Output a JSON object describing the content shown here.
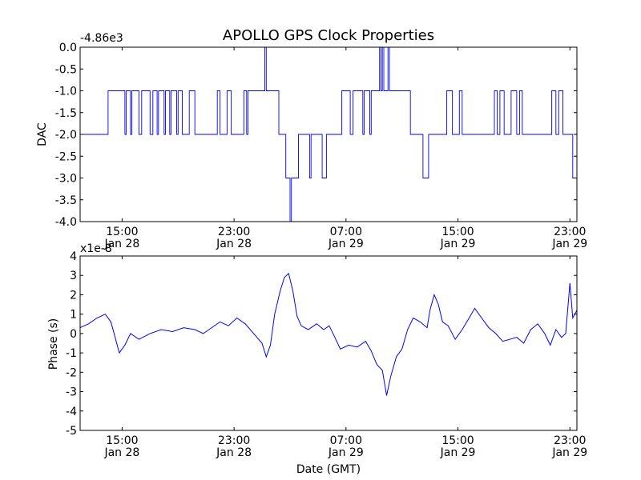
{
  "figure": {
    "title": "APOLLO GPS Clock Properties",
    "xlabel": "Date (GMT)"
  },
  "x_ticks": [
    {
      "time": "15:00",
      "day": "Jan 28"
    },
    {
      "time": "23:00",
      "day": "Jan 28"
    },
    {
      "time": "07:00",
      "day": "Jan 29"
    },
    {
      "time": "15:00",
      "day": "Jan 29"
    },
    {
      "time": "23:00",
      "day": "Jan 29"
    }
  ],
  "colors": {
    "line": "#0000ff",
    "axes": "#000000",
    "background": "#ffffff"
  },
  "chart_data": [
    {
      "type": "line",
      "ylabel": "DAC",
      "offset_label": "-4.86e3",
      "ylim": [
        -4.0,
        0.0
      ],
      "yticks": [
        "0.0",
        "-0.5",
        "-1.0",
        "-1.5",
        "-2.0",
        "-2.5",
        "-3.0",
        "-3.5",
        "-4.0"
      ],
      "x_unit": "hours since Jan 28 12:00 GMT",
      "xlim": [
        0,
        35.5
      ],
      "tick_hours": [
        3,
        11,
        19,
        27,
        35
      ],
      "series": [
        {
          "values": [
            [
              0,
              -2
            ],
            [
              2.0,
              -2
            ],
            [
              2.0,
              -1
            ],
            [
              3.2,
              -1
            ],
            [
              3.2,
              -2
            ],
            [
              3.3,
              -2
            ],
            [
              3.3,
              -1
            ],
            [
              3.6,
              -1
            ],
            [
              3.6,
              -2
            ],
            [
              3.7,
              -2
            ],
            [
              3.7,
              -1
            ],
            [
              4.2,
              -1
            ],
            [
              4.2,
              -2
            ],
            [
              4.4,
              -2
            ],
            [
              4.4,
              -1
            ],
            [
              5.0,
              -1
            ],
            [
              5.0,
              -2
            ],
            [
              5.2,
              -2
            ],
            [
              5.2,
              -1
            ],
            [
              5.5,
              -1
            ],
            [
              5.5,
              -2
            ],
            [
              5.6,
              -2
            ],
            [
              5.6,
              -1
            ],
            [
              6.0,
              -1
            ],
            [
              6.0,
              -2
            ],
            [
              6.1,
              -2
            ],
            [
              6.1,
              -1
            ],
            [
              6.4,
              -1
            ],
            [
              6.4,
              -2
            ],
            [
              6.5,
              -2
            ],
            [
              6.5,
              -1
            ],
            [
              6.9,
              -1
            ],
            [
              6.9,
              -2
            ],
            [
              7.0,
              -2
            ],
            [
              7.0,
              -1
            ],
            [
              7.3,
              -1
            ],
            [
              7.3,
              -2
            ],
            [
              7.8,
              -2
            ],
            [
              7.8,
              -1
            ],
            [
              8.2,
              -1
            ],
            [
              8.2,
              -2
            ],
            [
              9.8,
              -2
            ],
            [
              9.8,
              -1
            ],
            [
              10.0,
              -1
            ],
            [
              10.0,
              -2
            ],
            [
              10.5,
              -2
            ],
            [
              10.5,
              -1
            ],
            [
              10.8,
              -1
            ],
            [
              10.8,
              -2
            ],
            [
              11.7,
              -2
            ],
            [
              11.7,
              -1
            ],
            [
              11.9,
              -1
            ],
            [
              11.9,
              -2
            ],
            [
              12.0,
              -2
            ],
            [
              12.0,
              -1
            ],
            [
              13.2,
              -1
            ],
            [
              13.2,
              0
            ],
            [
              13.3,
              0
            ],
            [
              13.3,
              -1
            ],
            [
              14.2,
              -1
            ],
            [
              14.2,
              -2
            ],
            [
              14.7,
              -2
            ],
            [
              14.7,
              -3
            ],
            [
              15.0,
              -3
            ],
            [
              15.0,
              -4
            ],
            [
              15.1,
              -4
            ],
            [
              15.1,
              -3
            ],
            [
              15.6,
              -3
            ],
            [
              15.6,
              -2
            ],
            [
              16.4,
              -2
            ],
            [
              16.4,
              -3
            ],
            [
              16.5,
              -3
            ],
            [
              16.5,
              -2
            ],
            [
              17.3,
              -2
            ],
            [
              17.3,
              -3
            ],
            [
              17.6,
              -3
            ],
            [
              17.6,
              -2
            ],
            [
              18.7,
              -2
            ],
            [
              18.7,
              -1
            ],
            [
              19.3,
              -1
            ],
            [
              19.3,
              -2
            ],
            [
              19.5,
              -2
            ],
            [
              19.5,
              -1
            ],
            [
              20.2,
              -1
            ],
            [
              20.2,
              -2
            ],
            [
              20.3,
              -2
            ],
            [
              20.3,
              -1
            ],
            [
              20.7,
              -1
            ],
            [
              20.7,
              -2
            ],
            [
              20.8,
              -2
            ],
            [
              20.8,
              -1
            ],
            [
              21.4,
              -1
            ],
            [
              21.4,
              0
            ],
            [
              21.5,
              0
            ],
            [
              21.5,
              -1
            ],
            [
              21.6,
              -1
            ],
            [
              21.6,
              0
            ],
            [
              21.7,
              0
            ],
            [
              21.7,
              -1
            ],
            [
              22.0,
              -1
            ],
            [
              22.0,
              0
            ],
            [
              22.1,
              0
            ],
            [
              22.1,
              -1
            ],
            [
              23.6,
              -1
            ],
            [
              23.6,
              -2
            ],
            [
              24.5,
              -2
            ],
            [
              24.5,
              -3
            ],
            [
              24.9,
              -3
            ],
            [
              24.9,
              -2
            ],
            [
              26.2,
              -2
            ],
            [
              26.2,
              -1
            ],
            [
              26.6,
              -1
            ],
            [
              26.6,
              -2
            ],
            [
              27.1,
              -2
            ],
            [
              27.1,
              -1
            ],
            [
              27.3,
              -1
            ],
            [
              27.3,
              -2
            ],
            [
              29.6,
              -2
            ],
            [
              29.6,
              -1
            ],
            [
              29.8,
              -1
            ],
            [
              29.8,
              -2
            ],
            [
              30.0,
              -2
            ],
            [
              30.0,
              -1
            ],
            [
              30.3,
              -1
            ],
            [
              30.3,
              -2
            ],
            [
              30.8,
              -2
            ],
            [
              30.8,
              -1
            ],
            [
              31.2,
              -1
            ],
            [
              31.2,
              -2
            ],
            [
              31.4,
              -2
            ],
            [
              31.4,
              -1
            ],
            [
              31.6,
              -1
            ],
            [
              31.6,
              -2
            ],
            [
              33.7,
              -2
            ],
            [
              33.7,
              -1
            ],
            [
              34.0,
              -1
            ],
            [
              34.0,
              -2
            ],
            [
              34.2,
              -2
            ],
            [
              34.2,
              -1
            ],
            [
              34.5,
              -1
            ],
            [
              34.5,
              -2
            ],
            [
              35.2,
              -2
            ],
            [
              35.2,
              -3
            ],
            [
              35.4,
              -3
            ]
          ]
        }
      ]
    },
    {
      "type": "line",
      "ylabel": "Phase (s)",
      "offset_label": "x1e-8",
      "ylim": [
        -5,
        4
      ],
      "yticks": [
        "4",
        "3",
        "2",
        "1",
        "0",
        "-1",
        "-2",
        "-3",
        "-4",
        "-5"
      ],
      "x_unit": "hours since Jan 28 12:00 GMT",
      "xlim": [
        0,
        35.5
      ],
      "tick_hours": [
        3,
        11,
        19,
        27,
        35
      ],
      "series": [
        {
          "values": [
            [
              0,
              0.3
            ],
            [
              0.6,
              0.5
            ],
            [
              1.2,
              0.8
            ],
            [
              1.8,
              1.0
            ],
            [
              2.2,
              0.6
            ],
            [
              2.5,
              -0.2
            ],
            [
              2.8,
              -1.0
            ],
            [
              3.2,
              -0.6
            ],
            [
              3.6,
              0.0
            ],
            [
              4.2,
              -0.3
            ],
            [
              5.0,
              0.0
            ],
            [
              5.8,
              0.2
            ],
            [
              6.6,
              0.1
            ],
            [
              7.4,
              0.3
            ],
            [
              8.2,
              0.2
            ],
            [
              8.8,
              0.0
            ],
            [
              9.4,
              0.3
            ],
            [
              10.0,
              0.6
            ],
            [
              10.6,
              0.4
            ],
            [
              11.2,
              0.8
            ],
            [
              11.8,
              0.5
            ],
            [
              12.4,
              0.0
            ],
            [
              13.0,
              -0.5
            ],
            [
              13.3,
              -1.2
            ],
            [
              13.6,
              -0.6
            ],
            [
              13.9,
              1.0
            ],
            [
              14.3,
              2.2
            ],
            [
              14.6,
              2.9
            ],
            [
              14.9,
              3.1
            ],
            [
              15.2,
              2.2
            ],
            [
              15.5,
              0.9
            ],
            [
              15.8,
              0.4
            ],
            [
              16.3,
              0.2
            ],
            [
              16.9,
              0.5
            ],
            [
              17.4,
              0.2
            ],
            [
              17.8,
              0.4
            ],
            [
              18.2,
              -0.2
            ],
            [
              18.6,
              -0.8
            ],
            [
              19.2,
              -0.6
            ],
            [
              19.8,
              -0.7
            ],
            [
              20.4,
              -0.4
            ],
            [
              20.8,
              -0.9
            ],
            [
              21.2,
              -1.6
            ],
            [
              21.6,
              -1.9
            ],
            [
              21.9,
              -3.2
            ],
            [
              22.2,
              -2.2
            ],
            [
              22.6,
              -1.2
            ],
            [
              23.0,
              -0.8
            ],
            [
              23.4,
              0.2
            ],
            [
              23.8,
              0.8
            ],
            [
              24.3,
              0.6
            ],
            [
              24.8,
              0.3
            ],
            [
              25.0,
              1.2
            ],
            [
              25.3,
              2.0
            ],
            [
              25.6,
              1.5
            ],
            [
              25.9,
              0.6
            ],
            [
              26.3,
              0.4
            ],
            [
              26.8,
              -0.3
            ],
            [
              27.3,
              0.2
            ],
            [
              27.8,
              0.8
            ],
            [
              28.2,
              1.3
            ],
            [
              28.7,
              0.8
            ],
            [
              29.2,
              0.3
            ],
            [
              29.7,
              0.0
            ],
            [
              30.2,
              -0.4
            ],
            [
              30.7,
              -0.3
            ],
            [
              31.2,
              -0.2
            ],
            [
              31.7,
              -0.5
            ],
            [
              32.2,
              0.2
            ],
            [
              32.7,
              0.5
            ],
            [
              33.2,
              0.0
            ],
            [
              33.6,
              -0.6
            ],
            [
              34.0,
              0.2
            ],
            [
              34.4,
              -0.2
            ],
            [
              34.7,
              0.0
            ],
            [
              35.0,
              2.6
            ],
            [
              35.2,
              0.8
            ],
            [
              35.5,
              1.2
            ]
          ]
        }
      ]
    }
  ]
}
